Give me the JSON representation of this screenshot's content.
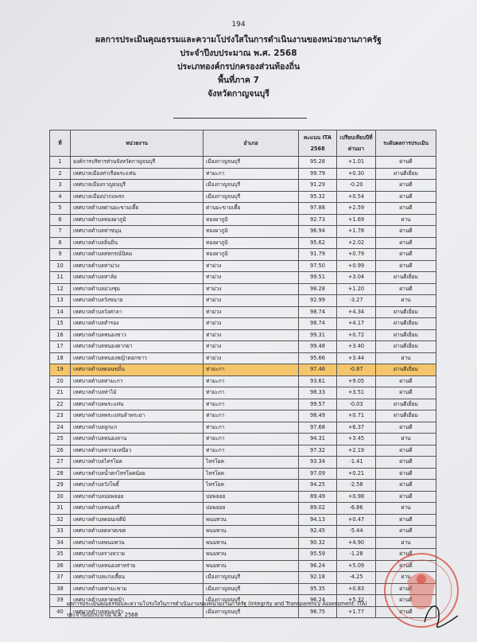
{
  "page_number": "194",
  "titles": [
    "ผลการประเมินคุณธรรมและความโปร่งใสในการดำเนินงานของหน่วยงานภาครัฐ",
    "ประจำปีงบประมาณ พ.ศ. 2568",
    "ประเภทองค์กรปกครองส่วนท้องถิ่น",
    "พื้นที่ภาค 7",
    "จังหวัดกาญจนบุรี"
  ],
  "table": {
    "headers": [
      "ที่",
      "หน่วยงาน",
      "อำเภอ",
      "คะแนน ITA 2568",
      "เปรียบเทียบปีที่ผ่านมา",
      "ระดับผลการประเมิน"
    ],
    "highlighted_row": 19,
    "highlight_color": "#f4c56a",
    "rows": [
      [
        "1",
        "องค์การบริหารส่วนจังหวัดกาญจนบุรี",
        "เมืองกาญจนบุรี",
        "95.28",
        "+1.01",
        "ผ่านดี"
      ],
      [
        "2",
        "เทศบาลเมืองท่าเรือพระแท่น",
        "ท่ามะกา",
        "99.79",
        "+0.30",
        "ผ่านดีเยี่ยม"
      ],
      [
        "3",
        "เทศบาลเมืองกาญจนบุรี",
        "เมืองกาญจนบุรี",
        "91.29",
        "-0.20",
        "ผ่านดี"
      ],
      [
        "4",
        "เทศบาลเมืองปากแพรก",
        "เมืองกาญจนบุรี",
        "95.32",
        "+0.54",
        "ผ่านดี"
      ],
      [
        "5",
        "เทศบาลตำบลด่านมะขามเตี้ย",
        "ด่านมะขามเตี้ย",
        "97.88",
        "+2.59",
        "ผ่านดี"
      ],
      [
        "6",
        "เทศบาลตำบลทองผาภูมิ",
        "ทองผาภูมิ",
        "92.73",
        "+1.69",
        "ผ่าน"
      ],
      [
        "7",
        "เทศบาลตำบลท่าขนุน",
        "ทองผาภูมิ",
        "96.94",
        "+1.78",
        "ผ่านดี"
      ],
      [
        "8",
        "เทศบาลตำบลลิ่นถิ่น",
        "ทองผาภูมิ",
        "95.62",
        "+2.02",
        "ผ่านดี"
      ],
      [
        "9",
        "เทศบาลตำบลสหกรณ์นิคม",
        "ทองผาภูมิ",
        "91.79",
        "+0.79",
        "ผ่านดี"
      ],
      [
        "10",
        "เทศบาลตำบลท่าม่วง",
        "ท่าม่วง",
        "97.50",
        "+0.99",
        "ผ่านดี"
      ],
      [
        "11",
        "เทศบาลตำบลท่าล้อ",
        "ท่าม่วง",
        "99.51",
        "+3.04",
        "ผ่านดีเยี่ยม"
      ],
      [
        "12",
        "เทศบาลตำบลม่วงชุม",
        "ท่าม่วง",
        "98.28",
        "+1.20",
        "ผ่านดี"
      ],
      [
        "13",
        "เทศบาลตำบลวังขนาย",
        "ท่าม่วง",
        "92.99",
        "-3.27",
        "ผ่าน"
      ],
      [
        "14",
        "เทศบาลตำบลวังศาลา",
        "ท่าม่วง",
        "98.74",
        "+4.34",
        "ผ่านดีเยี่ยม"
      ],
      [
        "15",
        "เทศบาลตำบลสำรอง",
        "ท่าม่วง",
        "98.74",
        "+4.17",
        "ผ่านดีเยี่ยม"
      ],
      [
        "16",
        "เทศบาลตำบลหนองขาว",
        "ท่าม่วง",
        "99.31",
        "+0.72",
        "ผ่านดีเยี่ยม"
      ],
      [
        "17",
        "เทศบาลตำบลหนองตากยา",
        "ท่าม่วง",
        "99.48",
        "+3.40",
        "ผ่านดีเยี่ยม"
      ],
      [
        "18",
        "เทศบาลตำบลหนองหญ้าดอกขาว",
        "ท่าม่วง",
        "95.66",
        "+3.44",
        "ผ่าน"
      ],
      [
        "19",
        "เทศบาลตำบลดอนขมิ้น",
        "ท่ามะกา",
        "97.46",
        "-0.87",
        "ผ่านดีเยี่ยม"
      ],
      [
        "20",
        "เทศบาลตำบลท่ามะกา",
        "ท่ามะกา",
        "93.61",
        "+9.05",
        "ผ่านดี"
      ],
      [
        "21",
        "เทศบาลตำบลท่าไม้",
        "ท่ามะกา",
        "98.33",
        "+3.51",
        "ผ่านดี"
      ],
      [
        "22",
        "เทศบาลตำบลพระแท่น",
        "ท่ามะกา",
        "99.57",
        "-0.03",
        "ผ่านดีเยี่ยม"
      ],
      [
        "23",
        "เทศบาลตำบลพระแท่นลำพระยา",
        "ท่ามะกา",
        "98.49",
        "+0.71",
        "ผ่านดีเยี่ยม"
      ],
      [
        "24",
        "เทศบาลตำบลลูกแก",
        "ท่ามะกา",
        "97.68",
        "+6.37",
        "ผ่านดี"
      ],
      [
        "25",
        "เทศบาลตำบลหนองลาน",
        "ท่ามะกา",
        "94.31",
        "+3.45",
        "ผ่าน"
      ],
      [
        "26",
        "เทศบาลตำบลหวายเหนียว",
        "ท่ามะกา",
        "97.32",
        "+2.19",
        "ผ่านดี"
      ],
      [
        "27",
        "เทศบาลตำบลไทรโยค",
        "ไทรโยค",
        "93.34",
        "-1.41",
        "ผ่านดี"
      ],
      [
        "28",
        "เทศบาลตำบลน้ำตกไทรโยคน้อย",
        "ไทรโยค",
        "97.09",
        "+0.21",
        "ผ่านดี"
      ],
      [
        "29",
        "เทศบาลตำบลวังโพธิ์",
        "ไทรโยค",
        "94.25",
        "-2.58",
        "ผ่านดี"
      ],
      [
        "30",
        "เทศบาลตำบลบ่อพลอย",
        "บ่อพลอย",
        "89.49",
        "+0.98",
        "ผ่านดี"
      ],
      [
        "31",
        "เทศบาลตำบลหนองรี",
        "บ่อพลอย",
        "89.02",
        "-6.86",
        "ผ่าน"
      ],
      [
        "32",
        "เทศบาลตำบลดอนเจดีย์",
        "พนมทวน",
        "94.13",
        "+0.47",
        "ผ่านดี"
      ],
      [
        "33",
        "เทศบาลตำบลตลาดเขต",
        "พนมทวน",
        "92.45",
        "-5.44",
        "ผ่านดี"
      ],
      [
        "34",
        "เทศบาลตำบลพนมทวน",
        "พนมทวน",
        "90.32",
        "+4.90",
        "ผ่าน"
      ],
      [
        "35",
        "เทศบาลตำบลรางหวาย",
        "พนมทวน",
        "95.59",
        "-1.28",
        "ผ่านดี"
      ],
      [
        "36",
        "เทศบาลตำบลหนองสาหร่าย",
        "พนมทวน",
        "96.24",
        "+5.09",
        "ผ่านดี"
      ],
      [
        "37",
        "เทศบาลตำบลแก่งเสี้ยน",
        "เมืองกาญจนบุรี",
        "92.18",
        "-4.25",
        "ผ่าน"
      ],
      [
        "38",
        "เทศบาลตำบลท่ามะขาม",
        "เมืองกาญจนบุรี",
        "95.35",
        "+0.83",
        "ผ่านดี"
      ],
      [
        "39",
        "เทศบาลตำบลลาดหญ้า",
        "เมืองกาญจนบุรี",
        "96.24",
        "+5.32",
        "ผ่านดี"
      ],
      [
        "40",
        "เทศบาลตำบลหนองบัว",
        "เมืองกาญจนบุรี",
        "96.75",
        "+1.77",
        "ผ่านดี"
      ]
    ]
  },
  "footnote": [
    "ผลการประเมินคุณธรรมและความโปร่งใสในการดำเนินงานของหน่วยงานภาครัฐ (Integrity and Transparency Assessment: ITA)",
    "ประจำปีงบประมาณ พ.ศ. 2568"
  ],
  "stamp": {
    "icon": "garuda-seal-stamp",
    "color": "#d9443a",
    "signature": true
  }
}
